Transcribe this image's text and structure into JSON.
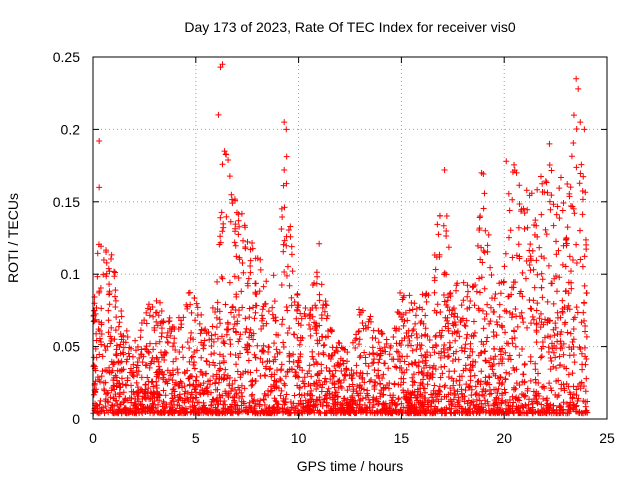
{
  "chart_data": {
    "type": "scatter",
    "title": "Day 173 of 2023, Rate Of TEC Index for receiver vis0",
    "xlabel": "GPS time / hours",
    "ylabel": "ROTI / TECUs",
    "xlim": [
      0,
      25
    ],
    "ylim": [
      0,
      0.25
    ],
    "xticks": [
      0,
      5,
      10,
      15,
      20,
      25
    ],
    "xtick_labels": [
      "0",
      "5",
      "10",
      "15",
      "20",
      "25"
    ],
    "yticks": [
      0,
      0.05,
      0.1,
      0.15,
      0.2,
      0.25
    ],
    "ytick_labels": [
      "0",
      "0.05",
      "0.1",
      "0.15",
      "0.2",
      "0.25"
    ],
    "grid": true,
    "marker": "+",
    "color": "#ff0000",
    "density_note_hours_to_envelope": [
      [
        0.0,
        0.07
      ],
      [
        0.3,
        0.13
      ],
      [
        0.6,
        0.12
      ],
      [
        1.0,
        0.11
      ],
      [
        1.5,
        0.06
      ],
      [
        2.0,
        0.05
      ],
      [
        3.0,
        0.09
      ],
      [
        4.0,
        0.06
      ],
      [
        4.5,
        0.08
      ],
      [
        5.0,
        0.09
      ],
      [
        5.5,
        0.06
      ],
      [
        6.0,
        0.08
      ],
      [
        6.3,
        0.18
      ],
      [
        6.5,
        0.19
      ],
      [
        7.0,
        0.15
      ],
      [
        7.5,
        0.13
      ],
      [
        8.0,
        0.12
      ],
      [
        8.5,
        0.09
      ],
      [
        9.0,
        0.1
      ],
      [
        9.4,
        0.2
      ],
      [
        9.7,
        0.11
      ],
      [
        10.0,
        0.08
      ],
      [
        10.5,
        0.07
      ],
      [
        11.0,
        0.12
      ],
      [
        11.5,
        0.06
      ],
      [
        12.0,
        0.05
      ],
      [
        12.5,
        0.04
      ],
      [
        13.0,
        0.08
      ],
      [
        13.5,
        0.07
      ],
      [
        14.0,
        0.06
      ],
      [
        14.5,
        0.05
      ],
      [
        15.0,
        0.09
      ],
      [
        15.5,
        0.08
      ],
      [
        16.0,
        0.09
      ],
      [
        16.5,
        0.1
      ],
      [
        17.0,
        0.17
      ],
      [
        17.5,
        0.09
      ],
      [
        18.0,
        0.1
      ],
      [
        18.5,
        0.09
      ],
      [
        19.0,
        0.17
      ],
      [
        19.5,
        0.08
      ],
      [
        20.0,
        0.1
      ],
      [
        20.3,
        0.18
      ],
      [
        20.7,
        0.17
      ],
      [
        21.2,
        0.15
      ],
      [
        21.7,
        0.16
      ],
      [
        22.2,
        0.19
      ],
      [
        22.7,
        0.17
      ],
      [
        23.2,
        0.18
      ],
      [
        23.5,
        0.23
      ],
      [
        23.8,
        0.2
      ],
      [
        24.0,
        0.15
      ]
    ],
    "peaks": [
      {
        "x": 0.3,
        "y": 0.192
      },
      {
        "x": 0.3,
        "y": 0.16
      },
      {
        "x": 6.2,
        "y": 0.243
      },
      {
        "x": 6.3,
        "y": 0.245
      },
      {
        "x": 6.1,
        "y": 0.21
      },
      {
        "x": 6.4,
        "y": 0.185
      },
      {
        "x": 9.3,
        "y": 0.205
      },
      {
        "x": 9.4,
        "y": 0.2
      },
      {
        "x": 9.3,
        "y": 0.172
      },
      {
        "x": 11.0,
        "y": 0.121
      },
      {
        "x": 17.1,
        "y": 0.172
      },
      {
        "x": 18.9,
        "y": 0.17
      },
      {
        "x": 20.1,
        "y": 0.178
      },
      {
        "x": 20.6,
        "y": 0.17
      },
      {
        "x": 22.2,
        "y": 0.19
      },
      {
        "x": 23.5,
        "y": 0.235
      },
      {
        "x": 23.6,
        "y": 0.228
      },
      {
        "x": 23.7,
        "y": 0.205
      },
      {
        "x": 23.9,
        "y": 0.2
      }
    ]
  }
}
